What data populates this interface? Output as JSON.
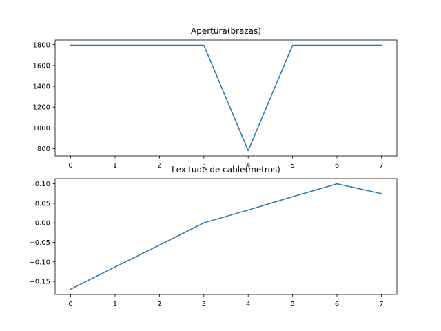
{
  "chart_data": [
    {
      "type": "line",
      "title": "Apertura(brazas)",
      "x": [
        0,
        1,
        2,
        3,
        4,
        5,
        6,
        7
      ],
      "series": [
        {
          "values": [
            1795,
            1795,
            1795,
            1795,
            780,
            1795,
            1795,
            1795
          ]
        }
      ],
      "xlim": [
        -0.35,
        7.35
      ],
      "ylim": [
        730,
        1845
      ],
      "xticks": [
        0,
        1,
        2,
        3,
        4,
        5,
        6,
        7
      ],
      "xtick_labels": [
        "0",
        "1",
        "2",
        "3",
        "4",
        "5",
        "6",
        "7"
      ],
      "yticks": [
        800,
        1000,
        1200,
        1400,
        1600,
        1800
      ],
      "ytick_labels": [
        "800",
        "1000",
        "1200",
        "1400",
        "1600",
        "1800"
      ],
      "grid": false,
      "color": "#1f77b4"
    },
    {
      "type": "line",
      "title": "Lexitude de cable(metros)",
      "x": [
        0,
        1,
        2,
        3,
        4,
        5,
        6,
        7
      ],
      "series": [
        {
          "values": [
            -0.17,
            -0.113,
            -0.057,
            0.0,
            0.033,
            0.067,
            0.1,
            0.075
          ]
        }
      ],
      "xlim": [
        -0.35,
        7.35
      ],
      "ylim": [
        -0.1835,
        0.1135
      ],
      "xticks": [
        0,
        1,
        2,
        3,
        4,
        5,
        6,
        7
      ],
      "xtick_labels": [
        "0",
        "1",
        "2",
        "3",
        "4",
        "5",
        "6",
        "7"
      ],
      "yticks": [
        -0.15,
        -0.1,
        -0.05,
        0.0,
        0.05,
        0.1
      ],
      "ytick_labels": [
        "−0.15",
        "−0.10",
        "−0.05",
        "0.00",
        "0.05",
        "0.10"
      ],
      "grid": false,
      "color": "#1f77b4"
    }
  ]
}
